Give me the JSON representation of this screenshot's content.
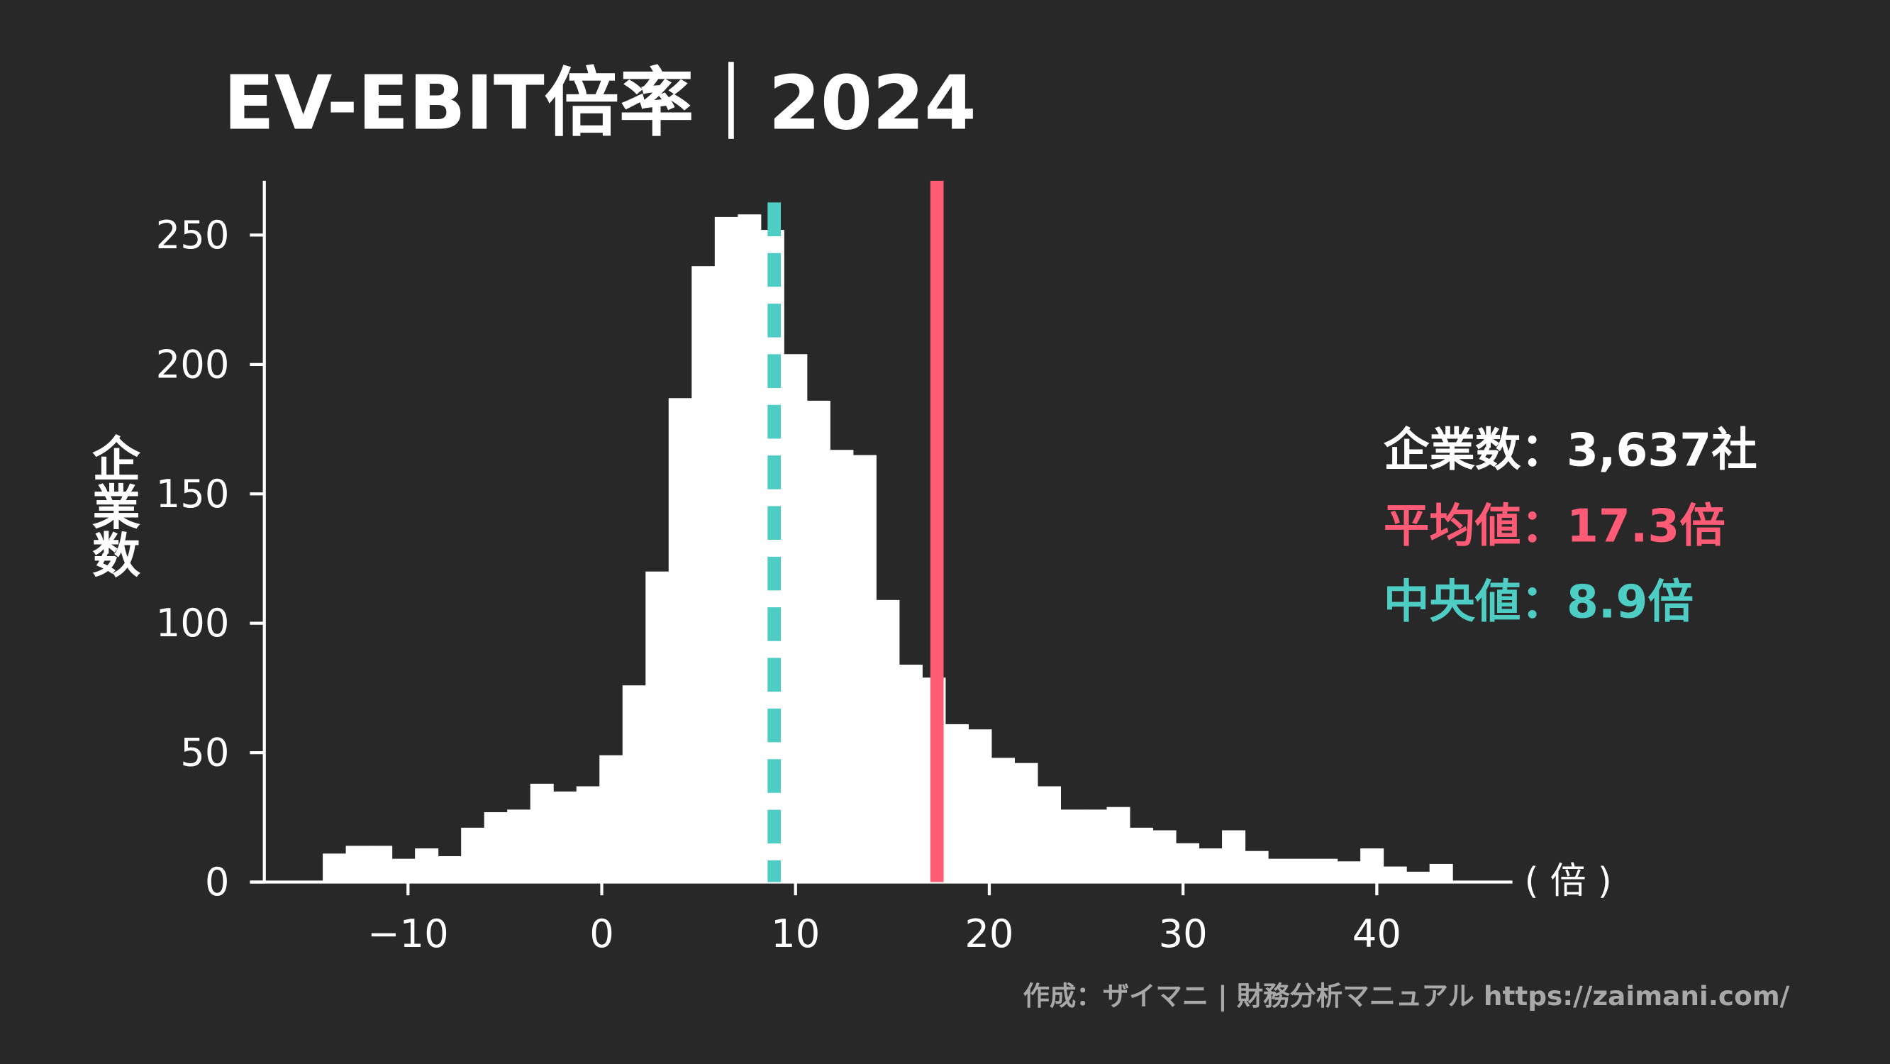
{
  "chart_data": {
    "type": "histogram",
    "title": "EV-EBIT倍率｜2024",
    "ylabel": "企業数",
    "xlabel": "( 倍 )",
    "bins": [
      -14.4,
      -13.21,
      -12.02,
      -10.83,
      -9.64,
      -8.45,
      -7.26,
      -6.07,
      -4.88,
      -3.69,
      -2.5,
      -1.31,
      -0.12,
      1.07,
      2.26,
      3.45,
      4.64,
      5.83,
      7.02,
      8.21,
      9.4,
      10.59,
      11.78,
      12.97,
      14.16,
      15.35,
      16.54,
      17.73,
      18.92,
      20.11,
      21.3,
      22.49,
      23.68,
      24.87,
      26.06,
      27.25,
      28.44,
      29.63,
      30.82,
      32.01,
      33.2,
      34.39,
      35.58,
      36.77,
      37.96,
      39.15,
      40.34,
      41.53,
      42.72,
      43.91
    ],
    "counts": [
      11,
      14,
      14,
      9,
      13,
      10,
      21,
      27,
      28,
      38,
      35,
      37,
      49,
      76,
      120,
      187,
      238,
      257,
      258,
      252,
      204,
      186,
      167,
      165,
      109,
      84,
      79,
      61,
      59,
      48,
      46,
      37,
      28,
      28,
      29,
      21,
      20,
      15,
      13,
      20,
      12,
      9,
      9,
      9,
      8,
      13,
      6,
      4,
      7
    ],
    "color": "#ffffff",
    "mean_line": {
      "value": 17.3,
      "color": "#ff5a76"
    },
    "median_line": {
      "value": 8.9,
      "color": "#4ecdc4"
    },
    "annotations": [
      {
        "text": "企業数：3,637社",
        "color": "#ffffff"
      },
      {
        "text": "平均値：17.3倍",
        "color": "#ff5a76"
      },
      {
        "text": "中央値：8.9倍",
        "color": "#4ecdc4"
      }
    ],
    "xlim": [
      -18.1,
      47
    ],
    "ylim": [
      0,
      271
    ],
    "xticks": [
      {
        "value": -10,
        "label": "−10"
      },
      0,
      10,
      20,
      30,
      40
    ],
    "yticks": [
      0,
      50,
      100,
      150,
      200,
      250
    ],
    "source": "作成：ザイマニ | 財務分析マニュアル https://zaimani.com/"
  }
}
